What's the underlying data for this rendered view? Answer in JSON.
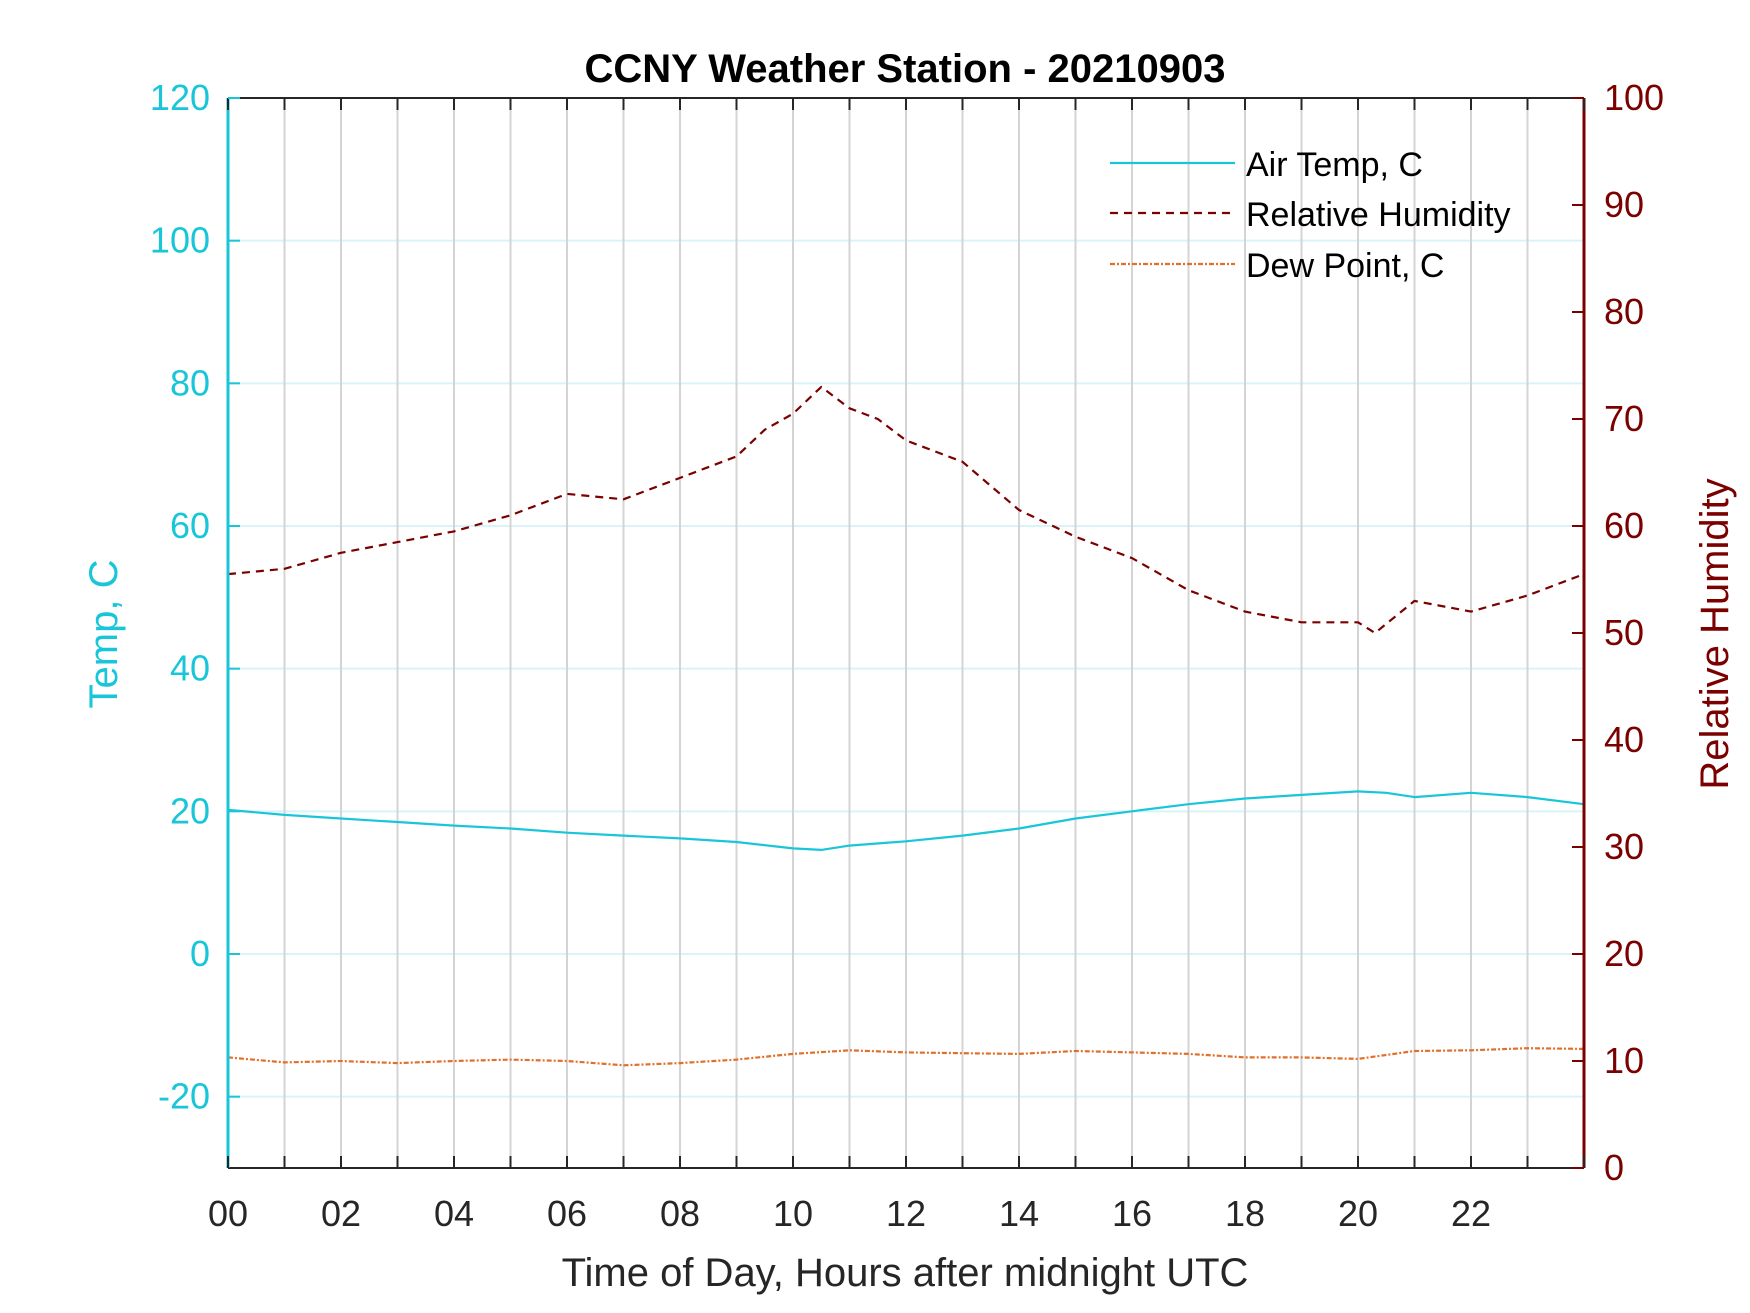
{
  "chart_data": {
    "type": "line",
    "title": "CCNY Weather Station - 20210903",
    "xlabel": "Time of Day, Hours after midnight UTC",
    "ylabel_left": "Temp, C",
    "ylabel_right": "Relative Humidity",
    "xlim": [
      0,
      24
    ],
    "ylim_left": [
      -30,
      120
    ],
    "ylim_right": [
      0,
      100
    ],
    "x_ticks": [
      "00",
      "02",
      "04",
      "06",
      "08",
      "10",
      "12",
      "14",
      "16",
      "18",
      "20",
      "22"
    ],
    "y_ticks_left": [
      "-20",
      "0",
      "20",
      "40",
      "60",
      "80",
      "100",
      "120"
    ],
    "y_ticks_right": [
      "0",
      "10",
      "20",
      "30",
      "40",
      "50",
      "60",
      "70",
      "80",
      "90",
      "100"
    ],
    "grid": true,
    "legend_position": "top-right",
    "colors": {
      "air_temp": "#19c6d9",
      "relative_humidity": "#7b0000",
      "dew_point": "#e0702a",
      "grid_vertical": "#d4d4d4",
      "grid_horizontal": "#d8f4f8"
    },
    "series": [
      {
        "name": "Air Temp, C",
        "axis": "left",
        "style": "solid",
        "x": [
          0,
          1,
          2,
          3,
          4,
          5,
          6,
          7,
          8,
          9,
          10,
          10.5,
          11,
          12,
          13,
          14,
          15,
          16,
          17,
          18,
          19,
          20,
          20.5,
          21,
          22,
          23,
          24
        ],
        "values": [
          20.2,
          19.5,
          19.0,
          18.5,
          18.0,
          17.6,
          17.0,
          16.6,
          16.2,
          15.7,
          14.8,
          14.6,
          15.2,
          15.8,
          16.6,
          17.6,
          19.0,
          20.0,
          21.0,
          21.8,
          22.3,
          22.8,
          22.6,
          22.0,
          22.6,
          22.0,
          21.0
        ]
      },
      {
        "name": "Relative Humidity",
        "axis": "right",
        "style": "dashed",
        "x": [
          0,
          1,
          2,
          3,
          4,
          5,
          6,
          7,
          8,
          9,
          9.5,
          10,
          10.5,
          11,
          11.5,
          12,
          13,
          14,
          15,
          16,
          17,
          18,
          19,
          20,
          20.3,
          21,
          22,
          23,
          24
        ],
        "values": [
          55.5,
          56.0,
          57.5,
          58.5,
          59.5,
          61.0,
          63.0,
          62.5,
          64.5,
          66.5,
          69.0,
          70.5,
          73.0,
          71.0,
          70.0,
          68.0,
          66.0,
          61.5,
          59.0,
          57.0,
          54.0,
          52.0,
          51.0,
          51.0,
          50.0,
          53.0,
          52.0,
          53.5,
          55.5
        ]
      },
      {
        "name": "Dew Point, C",
        "axis": "left",
        "style": "dashdot",
        "x": [
          0,
          1,
          2,
          3,
          4,
          5,
          6,
          7,
          8,
          9,
          10,
          11,
          12,
          13,
          14,
          15,
          16,
          17,
          18,
          19,
          20,
          21,
          22,
          23,
          24
        ],
        "values": [
          -14.5,
          -15.2,
          -15.0,
          -15.3,
          -15.0,
          -14.8,
          -15.0,
          -15.6,
          -15.3,
          -14.8,
          -14.0,
          -13.5,
          -13.8,
          -13.9,
          -14.0,
          -13.6,
          -13.8,
          -14.0,
          -14.5,
          -14.5,
          -14.7,
          -13.6,
          -13.5,
          -13.2,
          -13.3
        ]
      }
    ]
  }
}
